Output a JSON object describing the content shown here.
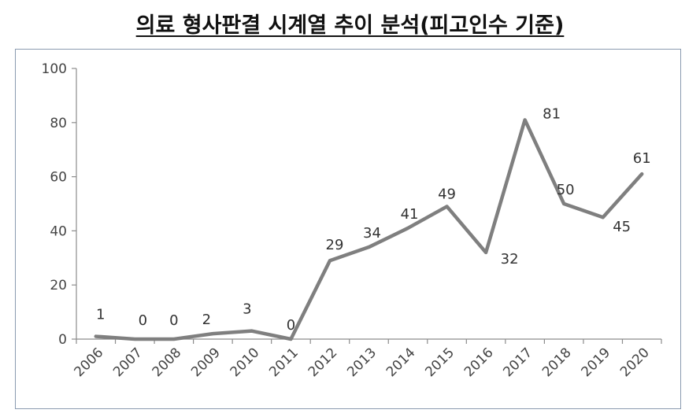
{
  "header": {
    "title": "의료 형사판결 시계열 추이 분석(피고인수 기준)"
  },
  "chart_data": {
    "type": "line",
    "title": "의료 형사판결 시계열 추이 분석(피고인수 기준)",
    "xlabel": "",
    "ylabel": "",
    "x": [
      "2006",
      "2007",
      "2008",
      "2009",
      "2010",
      "2011",
      "2012",
      "2013",
      "2014",
      "2015",
      "2016",
      "2017",
      "2018",
      "2019",
      "2020"
    ],
    "series": [
      {
        "values": [
          1,
          0,
          0,
          2,
          3,
          0,
          29,
          34,
          41,
          49,
          32,
          81,
          50,
          45,
          61
        ]
      }
    ],
    "ylim": [
      0,
      100
    ],
    "yticks": [
      "0",
      "20",
      "40",
      "60",
      "80",
      "100"
    ],
    "grid": false,
    "legend": "none",
    "line_color": "#7f7f7f"
  }
}
